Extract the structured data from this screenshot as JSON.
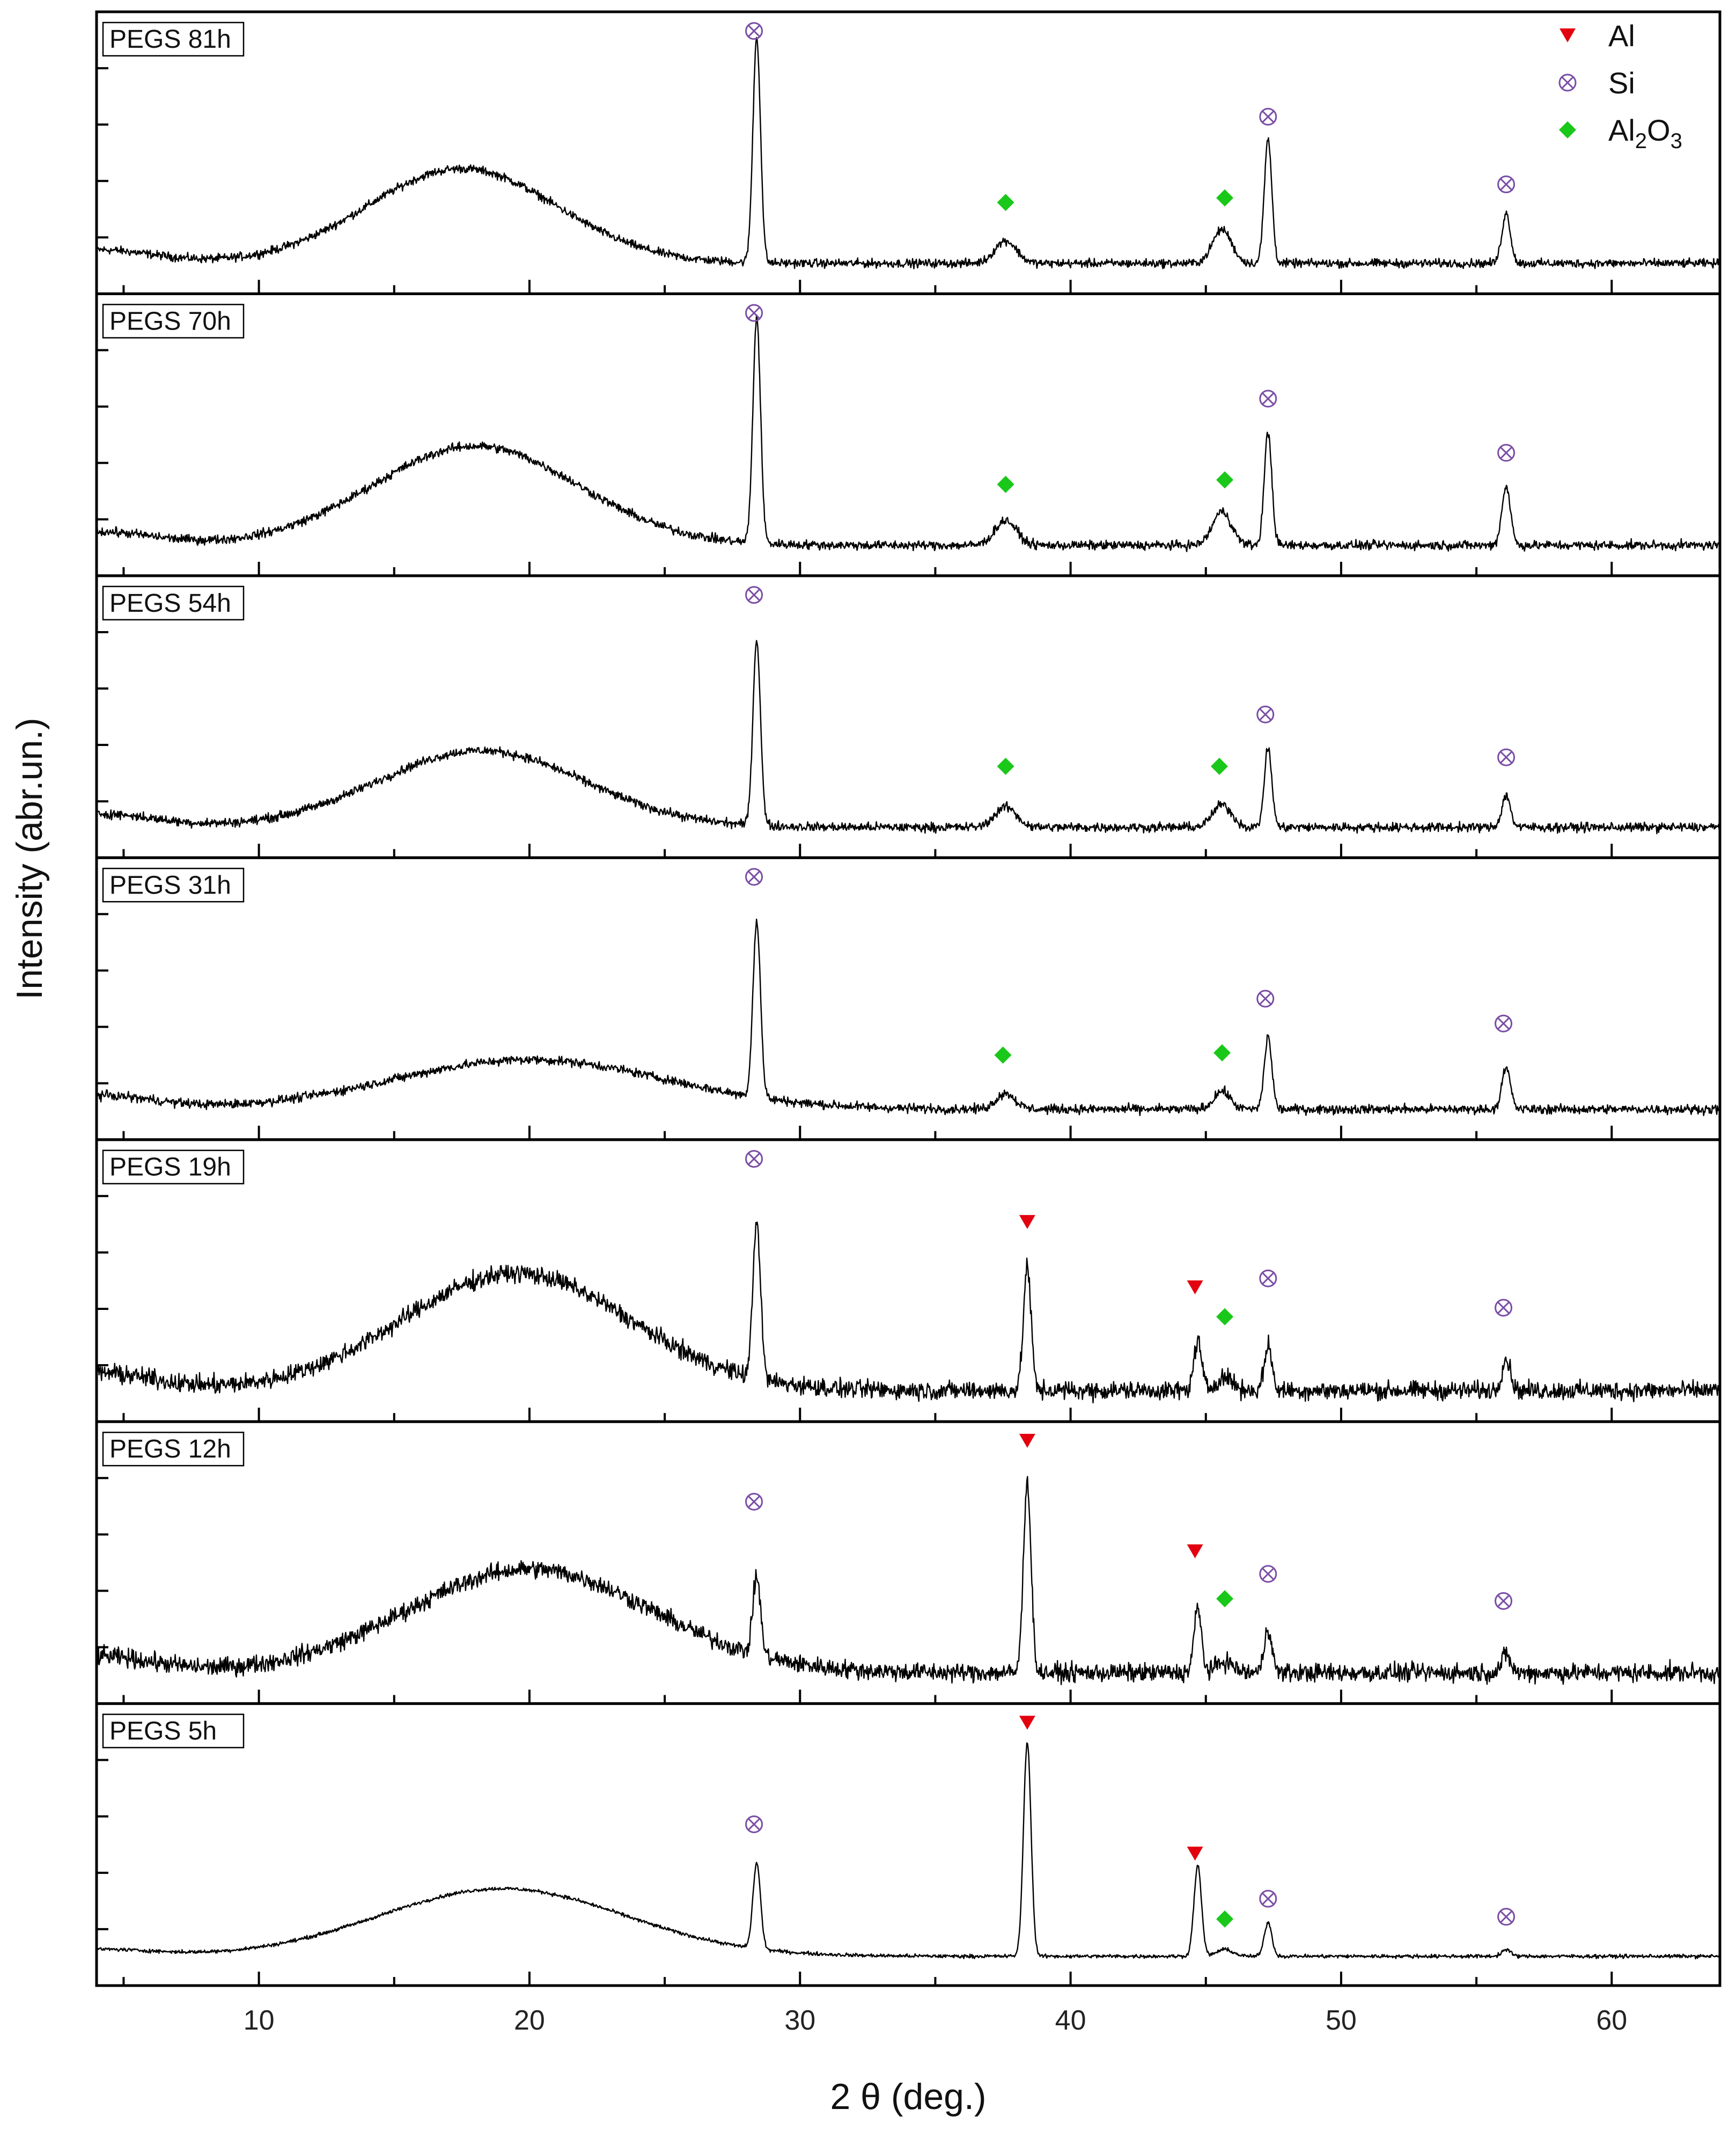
{
  "chart_data": {
    "type": "line",
    "xlabel": "2 θ (deg.)",
    "ylabel": "Intensity (abr.un.)",
    "xlim": [
      4,
      64
    ],
    "xticks": [
      10,
      20,
      30,
      40,
      50,
      60
    ],
    "stacked_panels": true,
    "legend": {
      "placement": "top-right",
      "items": [
        {
          "key": "Al",
          "label": "Al",
          "label_sub": "",
          "label_tail": "",
          "marker": "triangle-down",
          "color": "#e3000f"
        },
        {
          "key": "Si",
          "label": "Si",
          "label_sub": "",
          "label_tail": "",
          "marker": "circle-x",
          "color": "#7a4ea6"
        },
        {
          "key": "Al2O3",
          "label": "Al",
          "label_sub": "2",
          "label_tail": "O",
          "label_sub2": "3",
          "marker": "diamond",
          "color": "#19c819"
        }
      ]
    },
    "series": [
      {
        "name": "PEGS 81h",
        "baseline": 0.1,
        "noise": 0.028,
        "hump": {
          "center": 17.5,
          "width": 3.5,
          "height": 0.42
        },
        "peaks": [
          {
            "x": 28.4,
            "height": 1.0,
            "width": 0.14
          },
          {
            "x": 37.6,
            "height": 0.1,
            "width": 0.4
          },
          {
            "x": 45.6,
            "height": 0.15,
            "width": 0.35
          },
          {
            "x": 47.3,
            "height": 0.55,
            "width": 0.14
          },
          {
            "x": 56.1,
            "height": 0.22,
            "width": 0.16
          }
        ],
        "markers": [
          {
            "phase": "Si",
            "x": 28.3,
            "level": 1.04
          },
          {
            "phase": "Al2O3",
            "x": 37.6,
            "level": 0.28
          },
          {
            "phase": "Al2O3",
            "x": 45.7,
            "level": 0.3
          },
          {
            "phase": "Si",
            "x": 47.3,
            "level": 0.66
          },
          {
            "phase": "Si",
            "x": 56.1,
            "level": 0.36
          }
        ]
      },
      {
        "name": "PEGS 70h",
        "baseline": 0.1,
        "noise": 0.03,
        "hump": {
          "center": 18.0,
          "width": 3.8,
          "height": 0.44
        },
        "peaks": [
          {
            "x": 28.4,
            "height": 1.0,
            "width": 0.14
          },
          {
            "x": 37.6,
            "height": 0.11,
            "width": 0.4
          },
          {
            "x": 45.6,
            "height": 0.15,
            "width": 0.35
          },
          {
            "x": 47.3,
            "height": 0.5,
            "width": 0.14
          },
          {
            "x": 56.1,
            "height": 0.26,
            "width": 0.16
          }
        ],
        "markers": [
          {
            "phase": "Si",
            "x": 28.3,
            "level": 1.04
          },
          {
            "phase": "Al2O3",
            "x": 37.6,
            "level": 0.28
          },
          {
            "phase": "Al2O3",
            "x": 45.7,
            "level": 0.3
          },
          {
            "phase": "Si",
            "x": 47.3,
            "level": 0.66
          },
          {
            "phase": "Si",
            "x": 56.1,
            "level": 0.42
          }
        ]
      },
      {
        "name": "PEGS 54h",
        "baseline": 0.1,
        "noise": 0.03,
        "hump": {
          "center": 18.2,
          "width": 3.8,
          "height": 0.34
        },
        "peaks": [
          {
            "x": 28.4,
            "height": 0.82,
            "width": 0.14
          },
          {
            "x": 37.6,
            "height": 0.09,
            "width": 0.4
          },
          {
            "x": 45.6,
            "height": 0.1,
            "width": 0.35
          },
          {
            "x": 47.3,
            "height": 0.35,
            "width": 0.14
          },
          {
            "x": 56.1,
            "height": 0.14,
            "width": 0.16
          }
        ],
        "markers": [
          {
            "phase": "Si",
            "x": 28.3,
            "level": 1.04
          },
          {
            "phase": "Al2O3",
            "x": 37.6,
            "level": 0.28
          },
          {
            "phase": "Al2O3",
            "x": 45.5,
            "level": 0.28
          },
          {
            "phase": "Si",
            "x": 47.2,
            "level": 0.51
          },
          {
            "phase": "Si",
            "x": 56.1,
            "level": 0.32
          }
        ]
      },
      {
        "name": "PEGS 31h",
        "baseline": 0.1,
        "noise": 0.03,
        "hump": {
          "center": 20.0,
          "width": 5.0,
          "height": 0.22
        },
        "peaks": [
          {
            "x": 28.4,
            "height": 0.78,
            "width": 0.14
          },
          {
            "x": 37.6,
            "height": 0.07,
            "width": 0.35
          },
          {
            "x": 45.6,
            "height": 0.08,
            "width": 0.3
          },
          {
            "x": 47.3,
            "height": 0.32,
            "width": 0.14
          },
          {
            "x": 56.1,
            "height": 0.18,
            "width": 0.16
          }
        ],
        "markers": [
          {
            "phase": "Si",
            "x": 28.3,
            "level": 1.04
          },
          {
            "phase": "Al2O3",
            "x": 37.5,
            "level": 0.25
          },
          {
            "phase": "Al2O3",
            "x": 45.6,
            "level": 0.26
          },
          {
            "phase": "Si",
            "x": 47.2,
            "level": 0.5
          },
          {
            "phase": "Si",
            "x": 56.0,
            "level": 0.39
          }
        ]
      },
      {
        "name": "PEGS 19h",
        "baseline": 0.13,
        "noise": 0.06,
        "hump": {
          "center": 19.5,
          "width": 4.2,
          "height": 0.52
        },
        "peaks": [
          {
            "x": 28.4,
            "height": 0.7,
            "width": 0.14
          },
          {
            "x": 38.4,
            "height": 0.55,
            "width": 0.14
          },
          {
            "x": 44.7,
            "height": 0.22,
            "width": 0.14
          },
          {
            "x": 45.7,
            "height": 0.06,
            "width": 0.3
          },
          {
            "x": 47.3,
            "height": 0.2,
            "width": 0.14
          },
          {
            "x": 56.1,
            "height": 0.14,
            "width": 0.16
          }
        ],
        "markers": [
          {
            "phase": "Si",
            "x": 28.3,
            "level": 1.04
          },
          {
            "phase": "Al",
            "x": 38.4,
            "level": 0.76
          },
          {
            "phase": "Al",
            "x": 44.6,
            "level": 0.47
          },
          {
            "phase": "Al2O3",
            "x": 45.7,
            "level": 0.34
          },
          {
            "phase": "Si",
            "x": 47.3,
            "level": 0.51
          },
          {
            "phase": "Si",
            "x": 56.0,
            "level": 0.38
          }
        ]
      },
      {
        "name": "PEGS 12h",
        "baseline": 0.12,
        "noise": 0.06,
        "hump": {
          "center": 20.0,
          "width": 4.5,
          "height": 0.46
        },
        "peaks": [
          {
            "x": 28.4,
            "height": 0.35,
            "width": 0.14
          },
          {
            "x": 38.4,
            "height": 0.85,
            "width": 0.14
          },
          {
            "x": 44.7,
            "height": 0.28,
            "width": 0.14
          },
          {
            "x": 45.7,
            "height": 0.05,
            "width": 0.3
          },
          {
            "x": 47.3,
            "height": 0.2,
            "width": 0.14
          },
          {
            "x": 56.1,
            "height": 0.08,
            "width": 0.16
          }
        ],
        "markers": [
          {
            "phase": "Si",
            "x": 28.3,
            "level": 0.77
          },
          {
            "phase": "Al",
            "x": 38.4,
            "level": 1.04
          },
          {
            "phase": "Al",
            "x": 44.6,
            "level": 0.55
          },
          {
            "phase": "Al2O3",
            "x": 45.7,
            "level": 0.34
          },
          {
            "phase": "Si",
            "x": 47.3,
            "level": 0.45
          },
          {
            "phase": "Si",
            "x": 56.0,
            "level": 0.33
          }
        ]
      },
      {
        "name": "PEGS 5h",
        "baseline": 0.05,
        "noise": 0.012,
        "hump": {
          "center": 19.0,
          "width": 4.5,
          "height": 0.3
        },
        "peaks": [
          {
            "x": 28.4,
            "height": 0.38,
            "width": 0.14
          },
          {
            "x": 38.4,
            "height": 0.95,
            "width": 0.14
          },
          {
            "x": 44.7,
            "height": 0.4,
            "width": 0.14
          },
          {
            "x": 45.7,
            "height": 0.03,
            "width": 0.3
          },
          {
            "x": 47.3,
            "height": 0.15,
            "width": 0.14
          },
          {
            "x": 56.1,
            "height": 0.03,
            "width": 0.16
          }
        ],
        "markers": [
          {
            "phase": "Si",
            "x": 28.3,
            "level": 0.59
          },
          {
            "phase": "Al",
            "x": 38.4,
            "level": 1.04
          },
          {
            "phase": "Al",
            "x": 44.6,
            "level": 0.46
          },
          {
            "phase": "Al2O3",
            "x": 45.7,
            "level": 0.17
          },
          {
            "phase": "Si",
            "x": 47.3,
            "level": 0.26
          },
          {
            "phase": "Si",
            "x": 56.1,
            "level": 0.18
          }
        ]
      }
    ]
  }
}
